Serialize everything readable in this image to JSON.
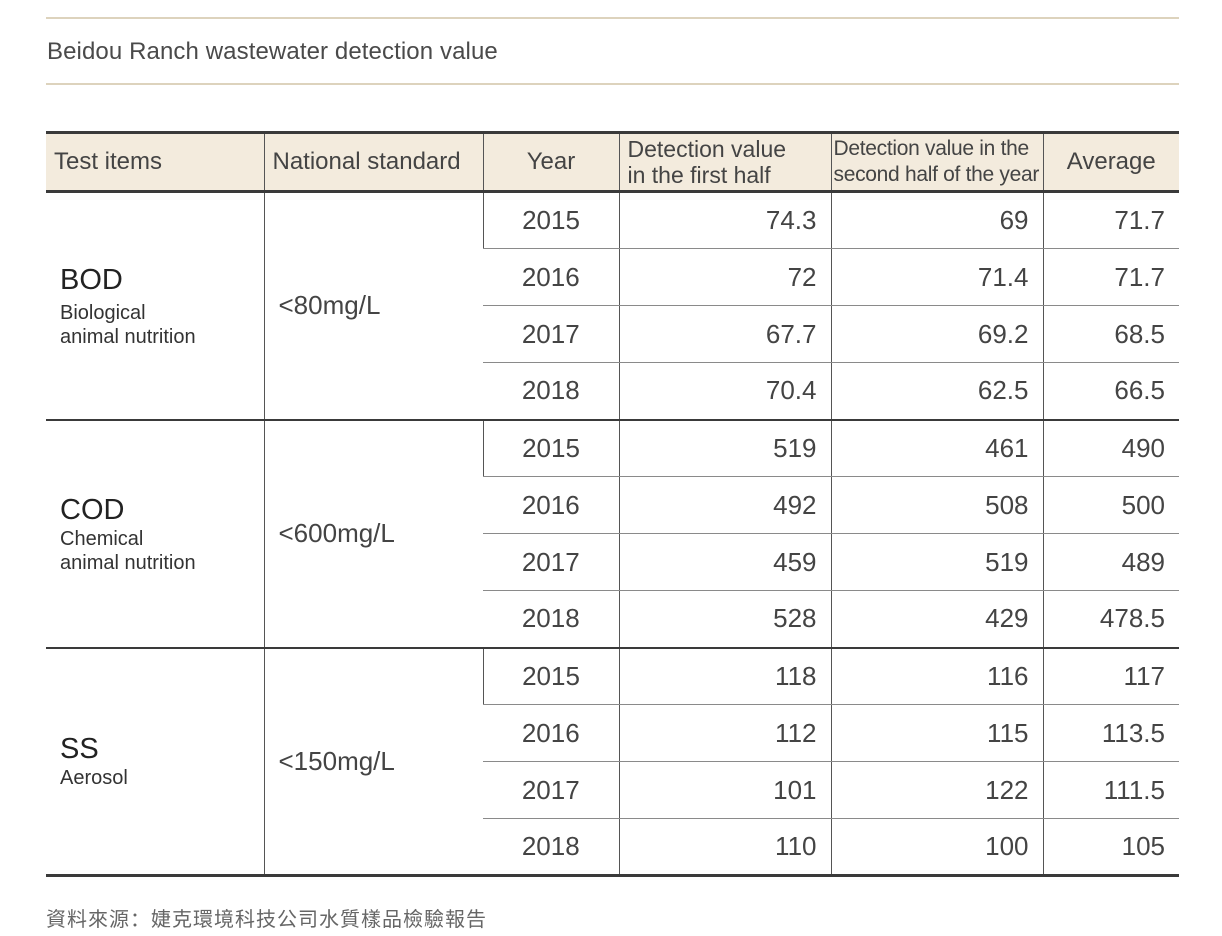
{
  "title": "Beidou Ranch wastewater detection value",
  "headers": {
    "test_items": "Test items",
    "national_standard": "National standard",
    "year": "Year",
    "first_half_line1": "Detection value",
    "first_half_line2": "in the first half",
    "second_half_line1": "Detection value in the",
    "second_half_line2": "second half of the year",
    "average": "Average"
  },
  "groups": [
    {
      "code": "BOD",
      "desc_line1": "Biological",
      "desc_line2": "animal nutrition",
      "standard": "<80mg/L",
      "rows": [
        {
          "year": "2015",
          "first": "74.3",
          "second": "69",
          "avg": "71.7"
        },
        {
          "year": "2016",
          "first": "72",
          "second": "71.4",
          "avg": "71.7"
        },
        {
          "year": "2017",
          "first": "67.7",
          "second": "69.2",
          "avg": "68.5"
        },
        {
          "year": "2018",
          "first": "70.4",
          "second": "62.5",
          "avg": "66.5"
        }
      ]
    },
    {
      "code": "COD",
      "desc_line1": "Chemical",
      "desc_line2": "animal nutrition",
      "standard": "<600mg/L",
      "rows": [
        {
          "year": "2015",
          "first": "519",
          "second": "461",
          "avg": "490"
        },
        {
          "year": "2016",
          "first": "492",
          "second": "508",
          "avg": "500"
        },
        {
          "year": "2017",
          "first": "459",
          "second": "519",
          "avg": "489"
        },
        {
          "year": "2018",
          "first": "528",
          "second": "429",
          "avg": "478.5"
        }
      ]
    },
    {
      "code": "SS",
      "desc_line1": "Aerosol",
      "desc_line2": "",
      "standard": "<150mg/L",
      "rows": [
        {
          "year": "2015",
          "first": "118",
          "second": "116",
          "avg": "117"
        },
        {
          "year": "2016",
          "first": "112",
          "second": "115",
          "avg": "113.5"
        },
        {
          "year": "2017",
          "first": "101",
          "second": "122",
          "avg": "111.5"
        },
        {
          "year": "2018",
          "first": "110",
          "second": "100",
          "avg": "105"
        }
      ]
    }
  ],
  "source": "資料來源：婕克環境科技公司水質樣品檢驗報告",
  "colors": {
    "header_bg": "#f3ebdd",
    "rule": "#ddd3bd",
    "border_dark": "#3a3a3a"
  }
}
